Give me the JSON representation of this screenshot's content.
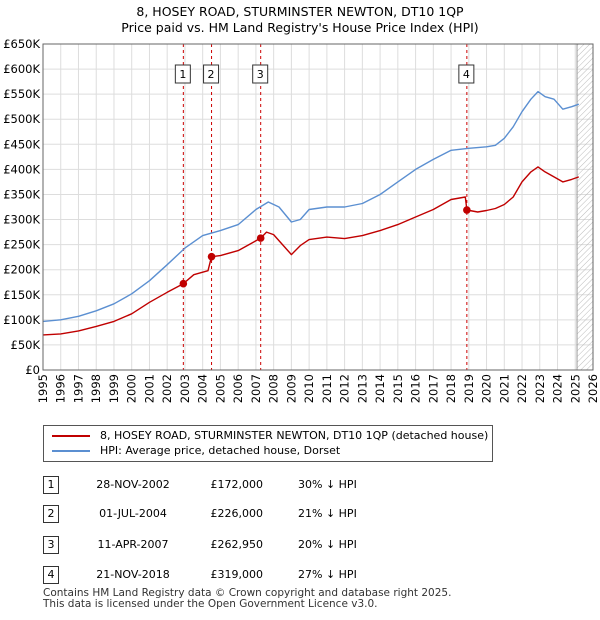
{
  "title_line1": "8, HOSEY ROAD, STURMINSTER NEWTON, DT10 1QP",
  "title_line2": "Price paid vs. HM Land Registry's House Price Index (HPI)",
  "chart_data": {
    "type": "line",
    "title": "8, HOSEY ROAD, STURMINSTER NEWTON, DT10 1QP - Price paid vs. HM Land Registry's House Price Index (HPI)",
    "xlabel": "",
    "ylabel": "",
    "xlim": [
      1995,
      2026
    ],
    "ylim": [
      0,
      650000
    ],
    "yticks": [
      0,
      50000,
      100000,
      150000,
      200000,
      250000,
      300000,
      350000,
      400000,
      450000,
      500000,
      550000,
      600000,
      650000
    ],
    "ytick_labels": [
      "£0",
      "£50K",
      "£100K",
      "£150K",
      "£200K",
      "£250K",
      "£300K",
      "£350K",
      "£400K",
      "£450K",
      "£500K",
      "£550K",
      "£600K",
      "£650K"
    ],
    "xticks": [
      1995,
      1996,
      1997,
      1998,
      1999,
      2000,
      2001,
      2002,
      2003,
      2004,
      2005,
      2006,
      2007,
      2008,
      2009,
      2010,
      2011,
      2012,
      2013,
      2014,
      2015,
      2016,
      2017,
      2018,
      2019,
      2020,
      2021,
      2022,
      2023,
      2024,
      2025,
      2026
    ],
    "grid": true,
    "hatched_region_from": 2025.1,
    "series": [
      {
        "name": "8, HOSEY ROAD, STURMINSTER NEWTON, DT10 1QP (detached house)",
        "color": "#c00000",
        "x": [
          1995.0,
          1996.0,
          1997.0,
          1998.0,
          1999.0,
          2000.0,
          2001.0,
          2002.0,
          2002.91,
          2003.5,
          2004.3,
          2004.5,
          2005.0,
          2006.0,
          2007.27,
          2007.6,
          2008.0,
          2008.5,
          2009.0,
          2009.5,
          2010.0,
          2011.0,
          2012.0,
          2013.0,
          2014.0,
          2015.0,
          2016.0,
          2017.0,
          2018.0,
          2018.8,
          2018.89,
          2019.5,
          2020.0,
          2020.5,
          2021.0,
          2021.5,
          2022.0,
          2022.5,
          2022.9,
          2023.3,
          2023.8,
          2024.3,
          2024.8,
          2025.2
        ],
        "values": [
          70000,
          72000,
          78000,
          87000,
          97000,
          112000,
          135000,
          155000,
          172000,
          190000,
          198000,
          226000,
          228000,
          238000,
          262950,
          275000,
          270000,
          250000,
          230000,
          248000,
          260000,
          265000,
          262000,
          268000,
          278000,
          290000,
          305000,
          320000,
          340000,
          345000,
          319000,
          315000,
          318000,
          322000,
          330000,
          345000,
          375000,
          395000,
          405000,
          395000,
          385000,
          375000,
          380000,
          385000
        ]
      },
      {
        "name": "HPI: Average price, detached house, Dorset",
        "color": "#5b8fd1",
        "x": [
          1995.0,
          1996.0,
          1997.0,
          1998.0,
          1999.0,
          2000.0,
          2001.0,
          2002.0,
          2003.0,
          2004.0,
          2005.0,
          2006.0,
          2007.0,
          2007.7,
          2008.3,
          2009.0,
          2009.5,
          2010.0,
          2011.0,
          2012.0,
          2013.0,
          2014.0,
          2015.0,
          2016.0,
          2017.0,
          2018.0,
          2019.0,
          2020.0,
          2020.5,
          2021.0,
          2021.5,
          2022.0,
          2022.5,
          2022.9,
          2023.3,
          2023.8,
          2024.3,
          2024.8,
          2025.2
        ],
        "values": [
          97000,
          100000,
          107000,
          118000,
          132000,
          152000,
          178000,
          210000,
          243000,
          268000,
          278000,
          290000,
          320000,
          335000,
          325000,
          295000,
          300000,
          320000,
          325000,
          325000,
          332000,
          350000,
          375000,
          400000,
          420000,
          438000,
          442000,
          445000,
          448000,
          462000,
          485000,
          515000,
          540000,
          555000,
          545000,
          540000,
          520000,
          525000,
          530000
        ]
      }
    ],
    "sale_markers": [
      {
        "label": "1",
        "x": 2002.91,
        "value": 172000
      },
      {
        "label": "2",
        "x": 2004.5,
        "value": 226000
      },
      {
        "label": "3",
        "x": 2007.27,
        "value": 262950
      },
      {
        "label": "4",
        "x": 2018.89,
        "value": 319000
      }
    ]
  },
  "legend": {
    "line1": "8, HOSEY ROAD, STURMINSTER NEWTON, DT10 1QP (detached house)",
    "line2": "HPI: Average price, detached house, Dorset"
  },
  "sales": [
    {
      "num": "1",
      "date": "28-NOV-2002",
      "price": "£172,000",
      "hpi": "30% ↓ HPI"
    },
    {
      "num": "2",
      "date": "01-JUL-2004",
      "price": "£226,000",
      "hpi": "21% ↓ HPI"
    },
    {
      "num": "3",
      "date": "11-APR-2007",
      "price": "£262,950",
      "hpi": "20% ↓ HPI"
    },
    {
      "num": "4",
      "date": "21-NOV-2018",
      "price": "£319,000",
      "hpi": "27% ↓ HPI"
    }
  ],
  "footer": {
    "line1": "Contains HM Land Registry data © Crown copyright and database right 2025.",
    "line2": "This data is licensed under the Open Government Licence v3.0."
  },
  "colors": {
    "property_line": "#c00000",
    "hpi_line": "#5b8fd1",
    "grid": "#dddddd",
    "marker_line": "#cc0000"
  }
}
